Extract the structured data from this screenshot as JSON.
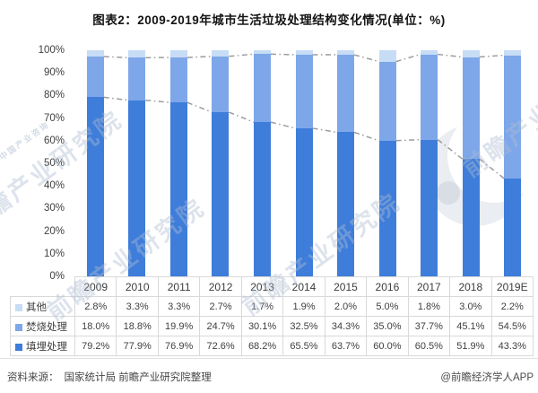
{
  "title": "图表2：2009-2019年城市生活垃圾处理结构变化情况(单位：%)",
  "chart_data": {
    "type": "bar",
    "stacked": true,
    "unit": "%",
    "categories": [
      "2009",
      "2010",
      "2011",
      "2012",
      "2013",
      "2014",
      "2015",
      "2016",
      "2017",
      "2018",
      "2019E"
    ],
    "series": [
      {
        "name": "填埋处理",
        "color": "#3e7dda",
        "values": [
          79.2,
          77.9,
          76.9,
          72.6,
          68.2,
          65.5,
          63.7,
          60.0,
          60.5,
          51.9,
          43.3
        ]
      },
      {
        "name": "焚烧处理",
        "color": "#7ea7e9",
        "values": [
          18.0,
          18.8,
          19.9,
          24.7,
          30.1,
          32.5,
          34.3,
          35.0,
          37.7,
          45.1,
          54.5
        ]
      },
      {
        "name": "其他",
        "color": "#c7dcf5",
        "values": [
          2.8,
          3.3,
          3.3,
          2.7,
          1.7,
          1.9,
          2.0,
          5.0,
          1.8,
          3.0,
          2.2
        ]
      }
    ],
    "ylim": [
      0,
      100
    ],
    "ytick_step": 10,
    "ytick_suffix": "%",
    "grid": false,
    "legend_position": "table-left",
    "connector_line_color": "#9c9c9c"
  },
  "footer": {
    "source_label": "资料来源：",
    "source_text": "国家统计局 前瞻产业研究院整理",
    "attribution": "@前瞻经济学人APP"
  },
  "watermark": {
    "main_text": "前瞻产业研究院",
    "sub_text": "中国产业咨询"
  }
}
